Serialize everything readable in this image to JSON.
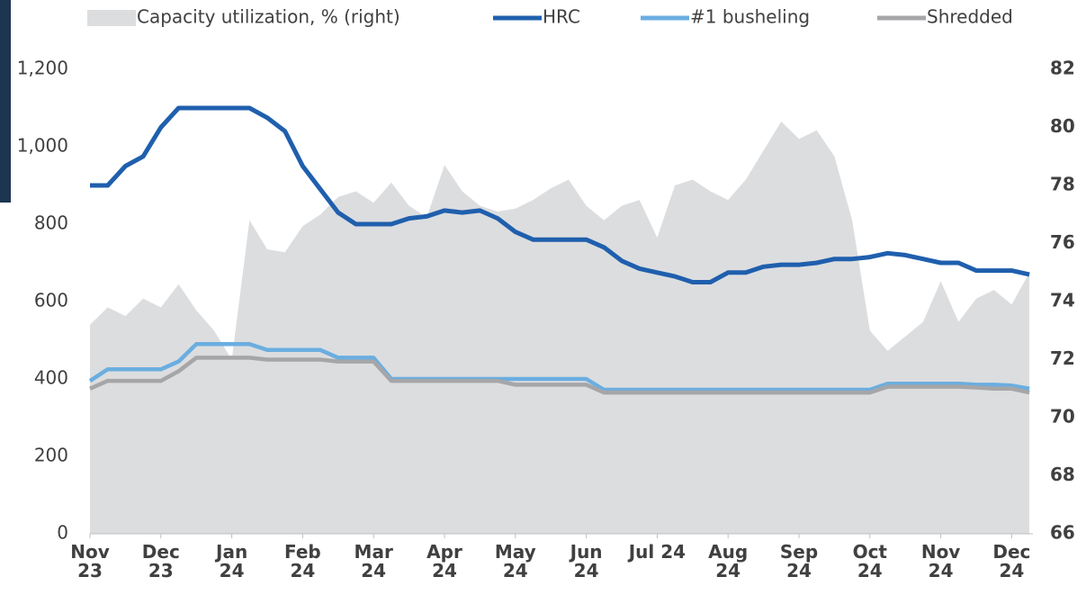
{
  "chart_data": {
    "type": "line",
    "x": [
      0,
      0.25,
      0.5,
      0.75,
      1,
      1.25,
      1.5,
      1.75,
      2,
      2.25,
      2.5,
      2.75,
      3,
      3.25,
      3.5,
      3.75,
      4,
      4.25,
      4.5,
      4.75,
      5,
      5.25,
      5.5,
      5.75,
      6,
      6.25,
      6.5,
      6.75,
      7,
      7.25,
      7.5,
      7.75,
      8,
      8.25,
      8.5,
      8.75,
      9,
      9.25,
      9.5,
      9.75,
      10,
      10.25,
      10.5,
      10.75,
      11,
      11.25,
      11.5,
      11.75,
      12,
      12.25,
      12.5,
      12.75,
      13,
      13.25
    ],
    "xlim": [
      0,
      13.3
    ],
    "xticks": [
      {
        "value": 0,
        "label": "Nov\n23"
      },
      {
        "value": 1,
        "label": "Dec\n23"
      },
      {
        "value": 2,
        "label": "Jan\n24"
      },
      {
        "value": 3,
        "label": "Feb\n24"
      },
      {
        "value": 4,
        "label": "Mar\n24"
      },
      {
        "value": 5,
        "label": "Apr\n24"
      },
      {
        "value": 6,
        "label": "May\n24"
      },
      {
        "value": 7,
        "label": "Jun\n24"
      },
      {
        "value": 8,
        "label": "Jul 24"
      },
      {
        "value": 9,
        "label": "Aug\n24"
      },
      {
        "value": 10,
        "label": "Sep\n24"
      },
      {
        "value": 11,
        "label": "Oct\n24"
      },
      {
        "value": 12,
        "label": "Nov\n24"
      },
      {
        "value": 13,
        "label": "Dec\n24"
      }
    ],
    "ylim": [
      0,
      1200
    ],
    "yticks": [
      0,
      200,
      400,
      600,
      800,
      {
        "value": 1000,
        "label": "1,000"
      },
      {
        "value": 1200,
        "label": "1,200"
      }
    ],
    "y2lim": [
      66,
      82
    ],
    "y2ticks": [
      66,
      68,
      70,
      72,
      74,
      76,
      78,
      80,
      82
    ],
    "series": [
      {
        "name": "Capacity utilization, % (right)",
        "color": "#dcdddf",
        "kind": "area",
        "axis": "y2",
        "values": [
          73.2,
          73.8,
          73.5,
          74.1,
          73.8,
          74.6,
          73.7,
          73.0,
          72.0,
          76.8,
          75.8,
          75.7,
          76.6,
          77.0,
          77.6,
          77.8,
          77.4,
          78.1,
          77.3,
          76.9,
          78.7,
          77.8,
          77.3,
          77.1,
          77.2,
          77.5,
          77.9,
          78.2,
          77.3,
          76.8,
          77.3,
          77.5,
          76.2,
          78.0,
          78.2,
          77.8,
          77.5,
          78.2,
          79.2,
          80.2,
          79.6,
          79.9,
          79.0,
          76.8,
          73.0,
          72.3,
          72.8,
          73.3,
          74.7,
          73.3,
          74.1,
          74.4,
          73.9,
          75.0
        ]
      },
      {
        "name": "HRC",
        "color": "#1f5fad",
        "values": [
          900,
          900,
          950,
          975,
          1050,
          1100,
          1100,
          1100,
          1100,
          1100,
          1075,
          1040,
          950,
          890,
          830,
          800,
          800,
          800,
          815,
          820,
          835,
          830,
          835,
          815,
          780,
          760,
          760,
          760,
          760,
          740,
          705,
          685,
          675,
          665,
          650,
          650,
          675,
          675,
          690,
          695,
          695,
          700,
          710,
          710,
          715,
          725,
          720,
          710,
          700,
          700,
          680,
          680,
          680,
          670
        ]
      },
      {
        "name": "#1 busheling",
        "color": "#6aaee0",
        "values": [
          395,
          425,
          425,
          425,
          425,
          445,
          490,
          490,
          490,
          490,
          475,
          475,
          475,
          475,
          455,
          455,
          455,
          400,
          400,
          400,
          400,
          400,
          400,
          400,
          400,
          400,
          400,
          400,
          400,
          372,
          372,
          372,
          372,
          372,
          372,
          372,
          372,
          372,
          372,
          372,
          372,
          372,
          372,
          372,
          372,
          388,
          388,
          388,
          388,
          388,
          385,
          385,
          383,
          375
        ]
      },
      {
        "name": "Shredded",
        "color": "#a6a6a8",
        "values": [
          375,
          395,
          395,
          395,
          395,
          420,
          455,
          455,
          455,
          455,
          450,
          450,
          450,
          450,
          445,
          445,
          445,
          395,
          395,
          395,
          395,
          395,
          395,
          395,
          385,
          385,
          385,
          385,
          385,
          365,
          365,
          365,
          365,
          365,
          365,
          365,
          365,
          365,
          365,
          365,
          365,
          365,
          365,
          365,
          365,
          380,
          380,
          380,
          380,
          380,
          378,
          375,
          375,
          365
        ]
      }
    ]
  }
}
